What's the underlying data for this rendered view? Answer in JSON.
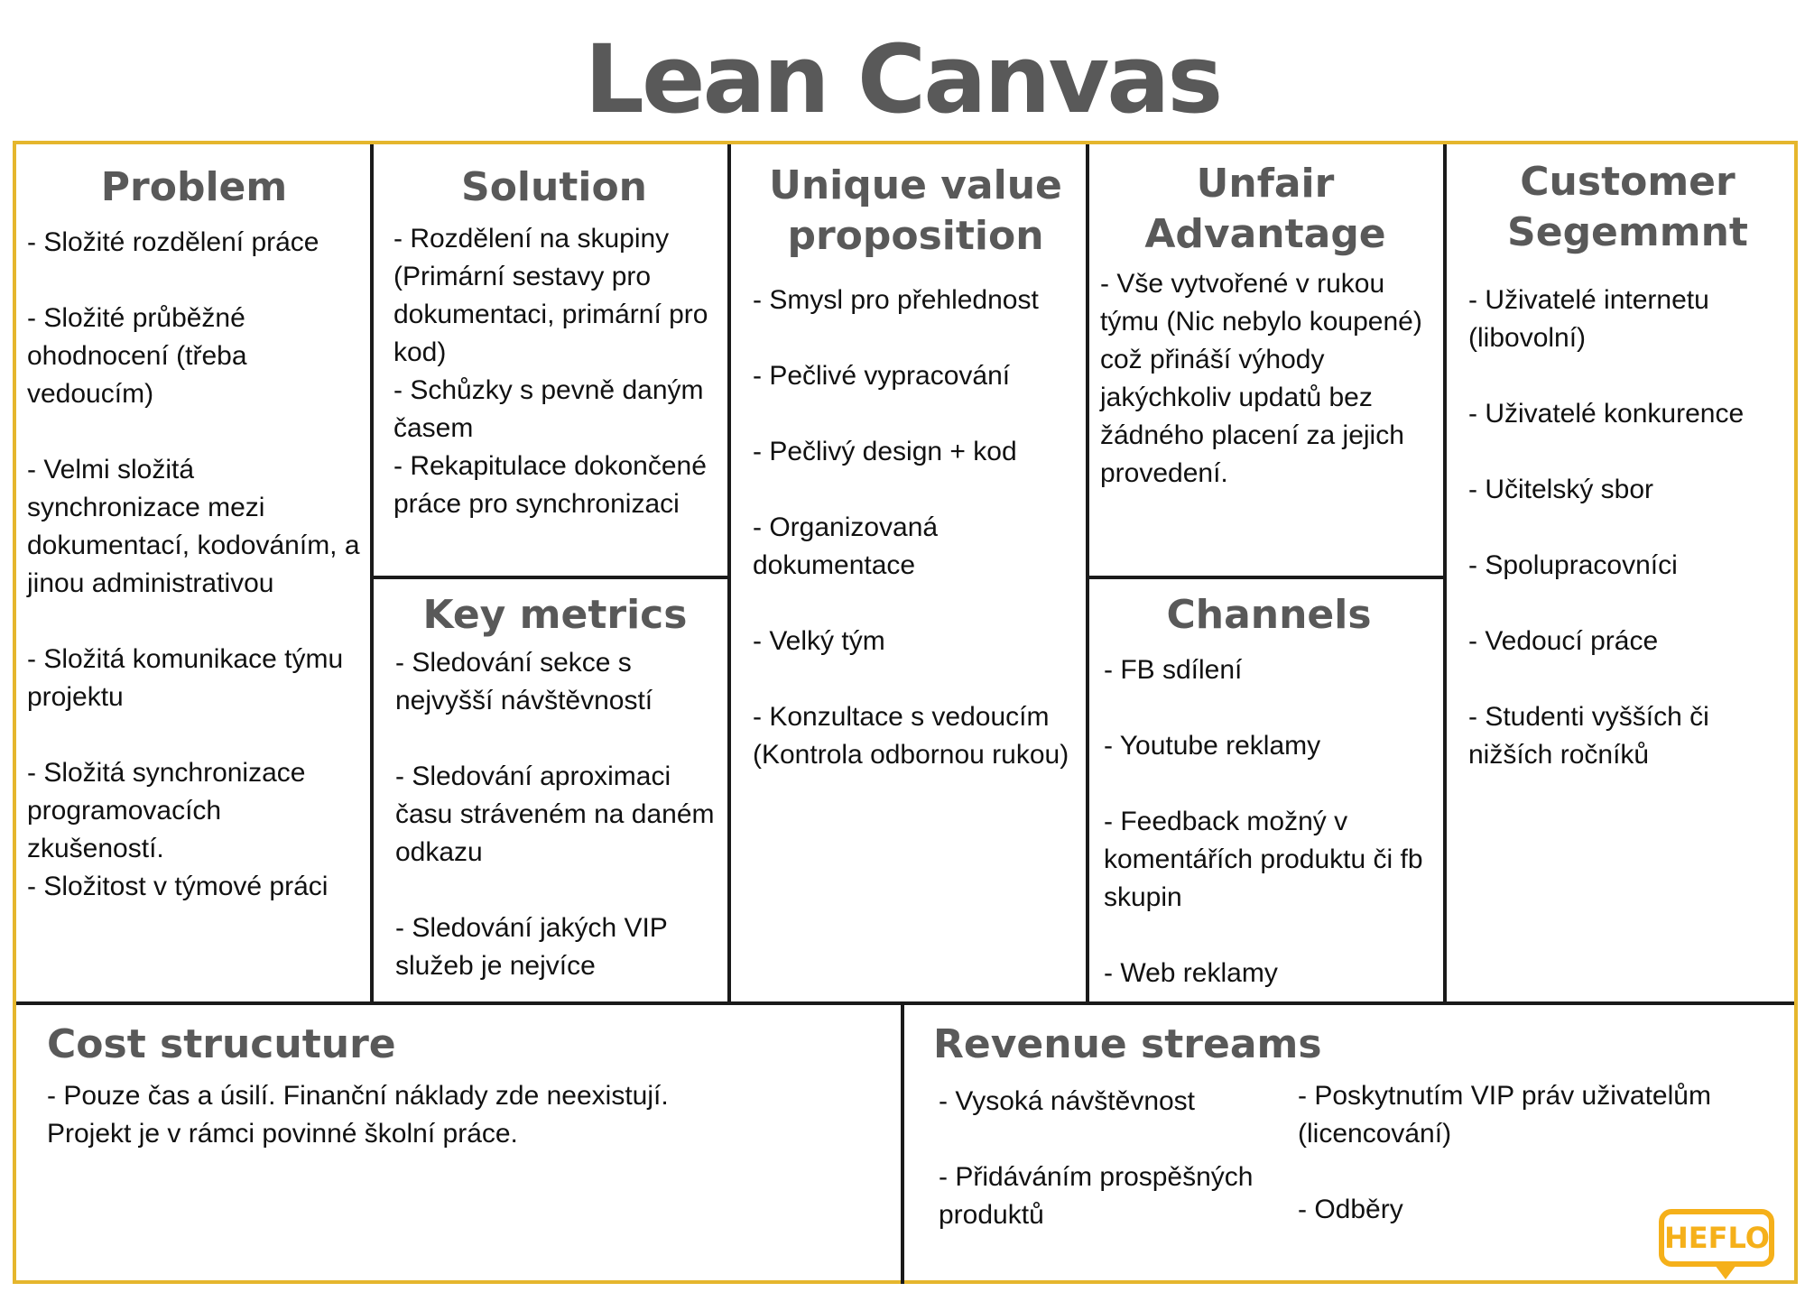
{
  "title": "Lean Canvas",
  "colors": {
    "frame": "#e5b62d",
    "heading": "#595959",
    "logo": "#f5b01a"
  },
  "problem": {
    "heading": "Problem",
    "items": [
      "- Složité rozdělení práce",
      "- Složité průběžné ohodnocení (třeba vedoucím)",
      "- Velmi složitá synchronizace mezi dokumentací, kodováním, a jinou administrativou",
      "- Složitá komunikace týmu projektu",
      "- Složitá synchronizace programovacích zkušeností.",
      "- Složitost v týmové práci"
    ]
  },
  "solution": {
    "heading": "Solution",
    "items": [
      "- Rozdělení na skupiny (Primární sestavy pro dokumentaci, primární pro kod)",
      "- Schůzky s pevně daným časem",
      "- Rekapitulace dokončené práce pro synchronizaci"
    ]
  },
  "key_metrics": {
    "heading": "Key metrics",
    "items": [
      "- Sledování sekce s nejvyšší návštěvností",
      "- Sledování aproximaci času stráveném na daném odkazu",
      "- Sledování jakých VIP služeb je nejvíce"
    ]
  },
  "uvp": {
    "heading": "Unique value proposition",
    "items": [
      "- Smysl pro přehlednost",
      "- Pečlivé vypracování",
      "- Pečlivý design + kod",
      "- Organizovaná dokumentace",
      "- Velký tým",
      "- Konzultace s vedoucím (Kontrola odbornou rukou)"
    ]
  },
  "unfair_advantage": {
    "heading": "Unfair Advantage",
    "items": [
      "- Vše vytvořené v rukou týmu (Nic nebylo koupené) což přináší výhody jakýchkoliv updatů bez žádného placení za jejich provedení."
    ]
  },
  "channels": {
    "heading": "Channels",
    "items": [
      "- FB sdílení",
      "- Youtube reklamy",
      "- Feedback možný v komentářích produktu či fb skupin",
      "- Web reklamy"
    ]
  },
  "customer_segments": {
    "heading": "Customer Segemmnt",
    "items": [
      "- Uživatelé internetu (libovolní)",
      "- Uživatelé konkurence",
      "- Učitelský sbor",
      "- Spolupracovníci",
      "- Vedoucí práce",
      "- Studenti vyšších či nižších ročníků"
    ]
  },
  "cost_structure": {
    "heading": "Cost strucuture",
    "text": "- Pouze čas a úsilí. Finanční náklady zde neexistují. Projekt je v rámci povinné školní práce."
  },
  "revenue_streams": {
    "heading": "Revenue streams",
    "left_items": [
      "- Vysoká návštěvnost",
      "- Přidáváním prospěšných produktů"
    ],
    "right_items": [
      "- Poskytnutím VIP práv uživatelům (licencování)",
      "- Odběry"
    ]
  },
  "logo": {
    "text": "HEFLO"
  }
}
